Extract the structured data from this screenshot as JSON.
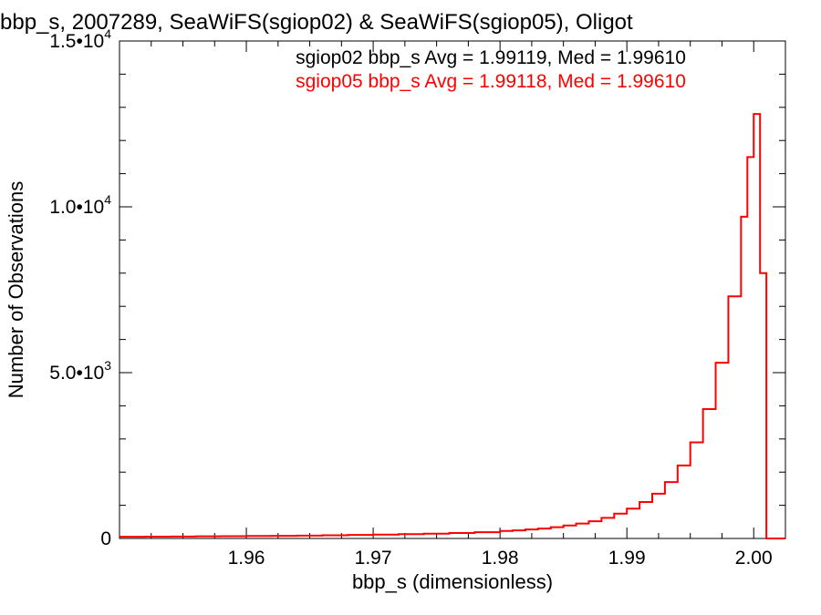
{
  "chart_data": {
    "type": "line",
    "title": "bbp_s, 2007289, SeaWiFS(sgiop02) & SeaWiFS(sgiop05), Oligot",
    "xlabel": "bbp_s (dimensionless)",
    "ylabel": "Number of Observations",
    "xlim": [
      1.95,
      2.0025
    ],
    "ylim": [
      0,
      15000
    ],
    "x_ticks": [
      {
        "value": 1.96,
        "label": "1.96"
      },
      {
        "value": 1.97,
        "label": "1.97"
      },
      {
        "value": 1.98,
        "label": "1.98"
      },
      {
        "value": 1.99,
        "label": "1.99"
      },
      {
        "value": 2.0,
        "label": "2.00"
      }
    ],
    "y_ticks": [
      {
        "value": 0,
        "mantissa": "0",
        "exponent": ""
      },
      {
        "value": 5000,
        "mantissa": "5.0•10",
        "exponent": "3"
      },
      {
        "value": 10000,
        "mantissa": "1.0•10",
        "exponent": "4"
      },
      {
        "value": 15000,
        "mantissa": "1.5•10",
        "exponent": "4"
      }
    ],
    "annotations": [
      {
        "text": "sgiop02 bbp_s Avg = 1.99119, Med = 1.99610",
        "color": "#000000"
      },
      {
        "text": "sgiop05 bbp_s Avg = 1.99118, Med = 1.99610",
        "color": "#ff0000"
      }
    ],
    "series": [
      {
        "style": "step",
        "color": "#ff0000",
        "points": [
          [
            1.95,
            50
          ],
          [
            1.952,
            55
          ],
          [
            1.954,
            60
          ],
          [
            1.956,
            65
          ],
          [
            1.958,
            70
          ],
          [
            1.96,
            75
          ],
          [
            1.962,
            80
          ],
          [
            1.964,
            85
          ],
          [
            1.966,
            95
          ],
          [
            1.968,
            105
          ],
          [
            1.97,
            115
          ],
          [
            1.972,
            130
          ],
          [
            1.974,
            145
          ],
          [
            1.976,
            165
          ],
          [
            1.978,
            190
          ],
          [
            1.98,
            225
          ],
          [
            1.981,
            245
          ],
          [
            1.982,
            270
          ],
          [
            1.983,
            300
          ],
          [
            1.984,
            340
          ],
          [
            1.985,
            390
          ],
          [
            1.986,
            450
          ],
          [
            1.987,
            520
          ],
          [
            1.988,
            620
          ],
          [
            1.989,
            750
          ],
          [
            1.99,
            900
          ],
          [
            1.991,
            1100
          ],
          [
            1.992,
            1350
          ],
          [
            1.993,
            1700
          ],
          [
            1.994,
            2200
          ],
          [
            1.995,
            2900
          ],
          [
            1.996,
            3900
          ],
          [
            1.997,
            5300
          ],
          [
            1.998,
            7300
          ],
          [
            1.999,
            9700
          ],
          [
            1.9995,
            11500
          ],
          [
            2.0,
            12800
          ],
          [
            2.0005,
            8000
          ],
          [
            2.001,
            0
          ],
          [
            2.0025,
            0
          ]
        ]
      }
    ],
    "grid": false,
    "legend": "none"
  }
}
